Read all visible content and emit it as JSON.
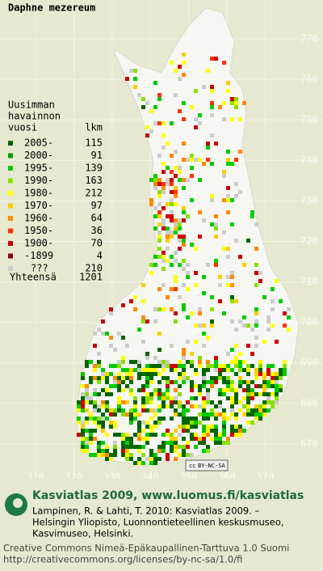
{
  "title": "Daphne mezereum",
  "legend": {
    "title": [
      "Uusimman",
      "havainnon",
      "vuosi"
    ],
    "count_header": "lkm",
    "rows": [
      {
        "label": "2005-",
        "color": "#006600",
        "count": 115
      },
      {
        "label": "2000-",
        "color": "#009900",
        "count": 91
      },
      {
        "label": "1995-",
        "color": "#00cc00",
        "count": 139
      },
      {
        "label": "1990-",
        "color": "#88e000",
        "count": 163
      },
      {
        "label": "1980-",
        "color": "#ffff00",
        "count": 212
      },
      {
        "label": "1970-",
        "color": "#ffcc00",
        "count": 97
      },
      {
        "label": "1960-",
        "color": "#ff8800",
        "count": 64
      },
      {
        "label": "1950-",
        "color": "#ff3300",
        "count": 36
      },
      {
        "label": "1900-",
        "color": "#cc0000",
        "count": 70
      },
      {
        "label": "-1899",
        "color": "#880000",
        "count": 4
      },
      {
        "label": "???",
        "color": "#cccccc",
        "count": 210
      }
    ],
    "total_label": "Yhteensä",
    "total": 1201
  },
  "grid_y": [
    770,
    760,
    750,
    740,
    730,
    720,
    710,
    700,
    690,
    680,
    670
  ],
  "grid_x": [
    310,
    320,
    330,
    340,
    350,
    360,
    370
  ],
  "license_badge": "BY-NC-SA",
  "footer": {
    "heading": "Kasviatlas 2009, www.luomus.fi/kasviatlas",
    "citation": [
      "Lampinen, R. & Lahti, T. 2010: Kasviatlas 2009. –",
      "Helsingin Yliopisto, Luonnontieteellinen keskusmuseo,",
      "Kasvimuseo, Helsinki."
    ],
    "license": [
      "Creative Commons Nimeä-Epäkaupallinen-Tarttuva 1.0 Suomi",
      "http://creativecommons.org/licenses/by-nc-sa/1.0/fi"
    ]
  }
}
